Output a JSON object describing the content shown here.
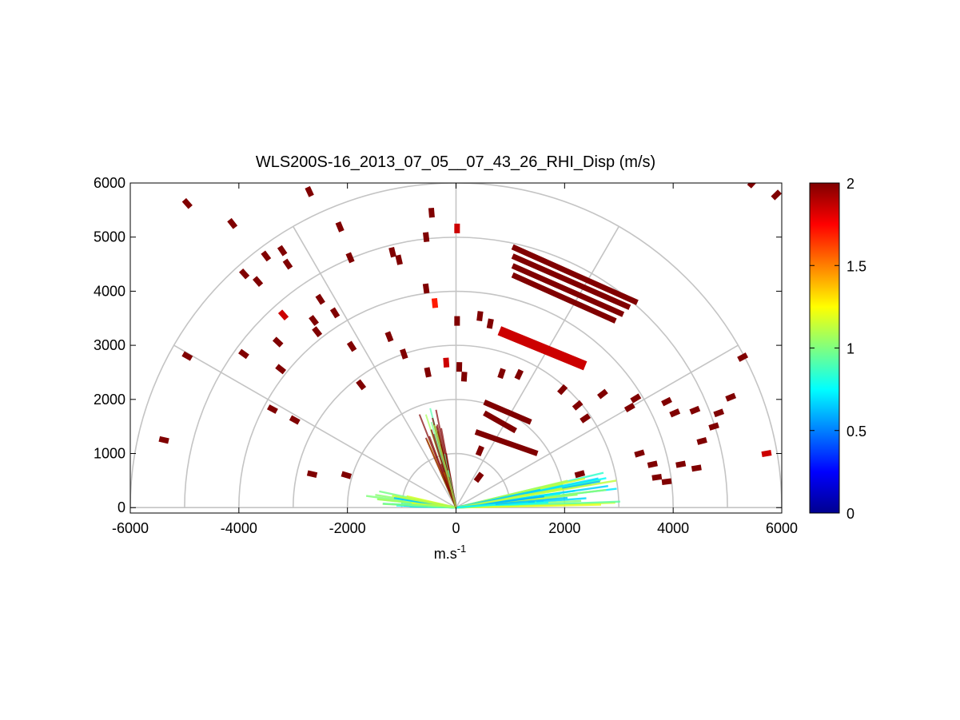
{
  "chart_data": {
    "type": "polar-rhi-scatter",
    "title": "WLS200S-16_2013_07_05__07_43_26_RHI_Disp (m/s)",
    "xlabel": "m.s",
    "xlabel_superscript": "-1",
    "ylabel": "",
    "xlim": [
      -6000,
      6000
    ],
    "ylim": [
      -100,
      6000
    ],
    "xticks": [
      -6000,
      -4000,
      -2000,
      0,
      2000,
      4000,
      6000
    ],
    "xtick_labels": [
      "-6000",
      "-4000",
      "-2000",
      "0",
      "2000",
      "4000",
      "6000"
    ],
    "yticks": [
      0,
      1000,
      2000,
      3000,
      4000,
      5000,
      6000
    ],
    "ytick_labels": [
      "0",
      "1000",
      "2000",
      "3000",
      "4000",
      "5000",
      "6000"
    ],
    "polar_grid": {
      "ranges": [
        1000,
        2000,
        3000,
        4000,
        5000,
        6000
      ],
      "angles_deg": [
        0,
        30,
        60,
        90,
        120,
        150,
        180
      ]
    },
    "colorbar": {
      "colormap": "jet",
      "min": 0,
      "max": 2,
      "ticks": [
        0,
        0.5,
        1,
        1.5,
        2
      ],
      "tick_labels": [
        "0",
        "0.5",
        "1",
        "1.5",
        "2"
      ]
    },
    "cells": [
      {
        "x": 5460,
        "y": 6000,
        "v": 2
      },
      {
        "x": 5900,
        "y": 5780,
        "v": 2
      },
      {
        "x": -4950,
        "y": 5620,
        "v": 2
      },
      {
        "x": -2700,
        "y": 5840,
        "v": 2
      },
      {
        "x": -4120,
        "y": 5250,
        "v": 2
      },
      {
        "x": -2140,
        "y": 5190,
        "v": 2
      },
      {
        "x": -3200,
        "y": 4750,
        "v": 2
      },
      {
        "x": -3500,
        "y": 4650,
        "v": 2
      },
      {
        "x": -3900,
        "y": 4320,
        "v": 2
      },
      {
        "x": -3650,
        "y": 4180,
        "v": 2
      },
      {
        "x": -3100,
        "y": 4500,
        "v": 2
      },
      {
        "x": -1950,
        "y": 4620,
        "v": 2
      },
      {
        "x": -550,
        "y": 5000,
        "v": 2
      },
      {
        "x": -1170,
        "y": 4720,
        "v": 2
      },
      {
        "x": -1050,
        "y": 4580,
        "v": 2
      },
      {
        "x": -450,
        "y": 5450,
        "v": 2
      },
      {
        "x": 20,
        "y": 5160,
        "v": 1.85
      },
      {
        "x": -550,
        "y": 4050,
        "v": 2
      },
      {
        "x": -390,
        "y": 3780,
        "v": 1.7
      },
      {
        "x": 20,
        "y": 3450,
        "v": 2
      },
      {
        "x": 440,
        "y": 3540,
        "v": 2
      },
      {
        "x": -3180,
        "y": 3560,
        "v": 1.85
      },
      {
        "x": -2500,
        "y": 3850,
        "v": 2
      },
      {
        "x": -2620,
        "y": 3460,
        "v": 2
      },
      {
        "x": -2230,
        "y": 3600,
        "v": 2
      },
      {
        "x": -2560,
        "y": 3250,
        "v": 2
      },
      {
        "x": -3280,
        "y": 3060,
        "v": 2
      },
      {
        "x": -4950,
        "y": 2800,
        "v": 2
      },
      {
        "x": -3910,
        "y": 2840,
        "v": 2
      },
      {
        "x": -3230,
        "y": 2560,
        "v": 2
      },
      {
        "x": -1230,
        "y": 3160,
        "v": 2
      },
      {
        "x": -1920,
        "y": 2980,
        "v": 2
      },
      {
        "x": -960,
        "y": 2840,
        "v": 2
      },
      {
        "x": -520,
        "y": 2500,
        "v": 2
      },
      {
        "x": 60,
        "y": 2600,
        "v": 2
      },
      {
        "x": -180,
        "y": 2680,
        "v": 1.85
      },
      {
        "x": 150,
        "y": 2420,
        "v": 2
      },
      {
        "x": -1750,
        "y": 2270,
        "v": 2
      },
      {
        "x": -3380,
        "y": 1820,
        "v": 2
      },
      {
        "x": -2970,
        "y": 1620,
        "v": 2
      },
      {
        "x": -5380,
        "y": 1250,
        "v": 2
      },
      {
        "x": -2650,
        "y": 620,
        "v": 2
      },
      {
        "x": -2020,
        "y": 600,
        "v": 2
      },
      {
        "x": 630,
        "y": 3400,
        "v": 2
      },
      {
        "x": 1960,
        "y": 2180,
        "v": 2
      },
      {
        "x": 2700,
        "y": 2100,
        "v": 2
      },
      {
        "x": 2240,
        "y": 1890,
        "v": 2
      },
      {
        "x": 2380,
        "y": 1650,
        "v": 2
      },
      {
        "x": 3880,
        "y": 1960,
        "v": 2
      },
      {
        "x": 3310,
        "y": 2020,
        "v": 2
      },
      {
        "x": 3200,
        "y": 1850,
        "v": 2
      },
      {
        "x": 5280,
        "y": 2780,
        "v": 2
      },
      {
        "x": 5060,
        "y": 2040,
        "v": 2
      },
      {
        "x": 4030,
        "y": 1750,
        "v": 2
      },
      {
        "x": 4400,
        "y": 1800,
        "v": 2
      },
      {
        "x": 4840,
        "y": 1750,
        "v": 2
      },
      {
        "x": 4750,
        "y": 1500,
        "v": 2
      },
      {
        "x": 4530,
        "y": 1230,
        "v": 2
      },
      {
        "x": 5720,
        "y": 1000,
        "v": 1.85
      },
      {
        "x": 4140,
        "y": 800,
        "v": 2
      },
      {
        "x": 4430,
        "y": 730,
        "v": 2
      },
      {
        "x": 3620,
        "y": 800,
        "v": 2
      },
      {
        "x": 3700,
        "y": 560,
        "v": 2
      },
      {
        "x": 3880,
        "y": 480,
        "v": 2
      },
      {
        "x": 3380,
        "y": 1000,
        "v": 2
      },
      {
        "x": 2280,
        "y": 620,
        "v": 2
      },
      {
        "x": 1160,
        "y": 2460,
        "v": 2
      },
      {
        "x": 840,
        "y": 2480,
        "v": 2
      },
      {
        "x": 440,
        "y": 1050,
        "v": 2
      },
      {
        "x": 420,
        "y": 560,
        "v": 2
      }
    ],
    "streaks": [
      {
        "x1": 1040,
        "y1": 4820,
        "x2": 3340,
        "y2": 3790,
        "v": 2
      },
      {
        "x1": 1040,
        "y1": 4650,
        "x2": 3200,
        "y2": 3700,
        "v": 2
      },
      {
        "x1": 1040,
        "y1": 4470,
        "x2": 3080,
        "y2": 3570,
        "v": 2
      },
      {
        "x1": 1040,
        "y1": 4300,
        "x2": 2940,
        "y2": 3450,
        "v": 2
      },
      {
        "x1": 800,
        "y1": 3270,
        "x2": 2380,
        "y2": 2620,
        "v": 1.85
      },
      {
        "x1": 520,
        "y1": 1950,
        "x2": 1380,
        "y2": 1580,
        "v": 2
      },
      {
        "x1": 520,
        "y1": 1750,
        "x2": 1100,
        "y2": 1420,
        "v": 2
      },
      {
        "x1": 360,
        "y1": 1400,
        "x2": 1500,
        "y2": 1000,
        "v": 2
      }
    ]
  }
}
